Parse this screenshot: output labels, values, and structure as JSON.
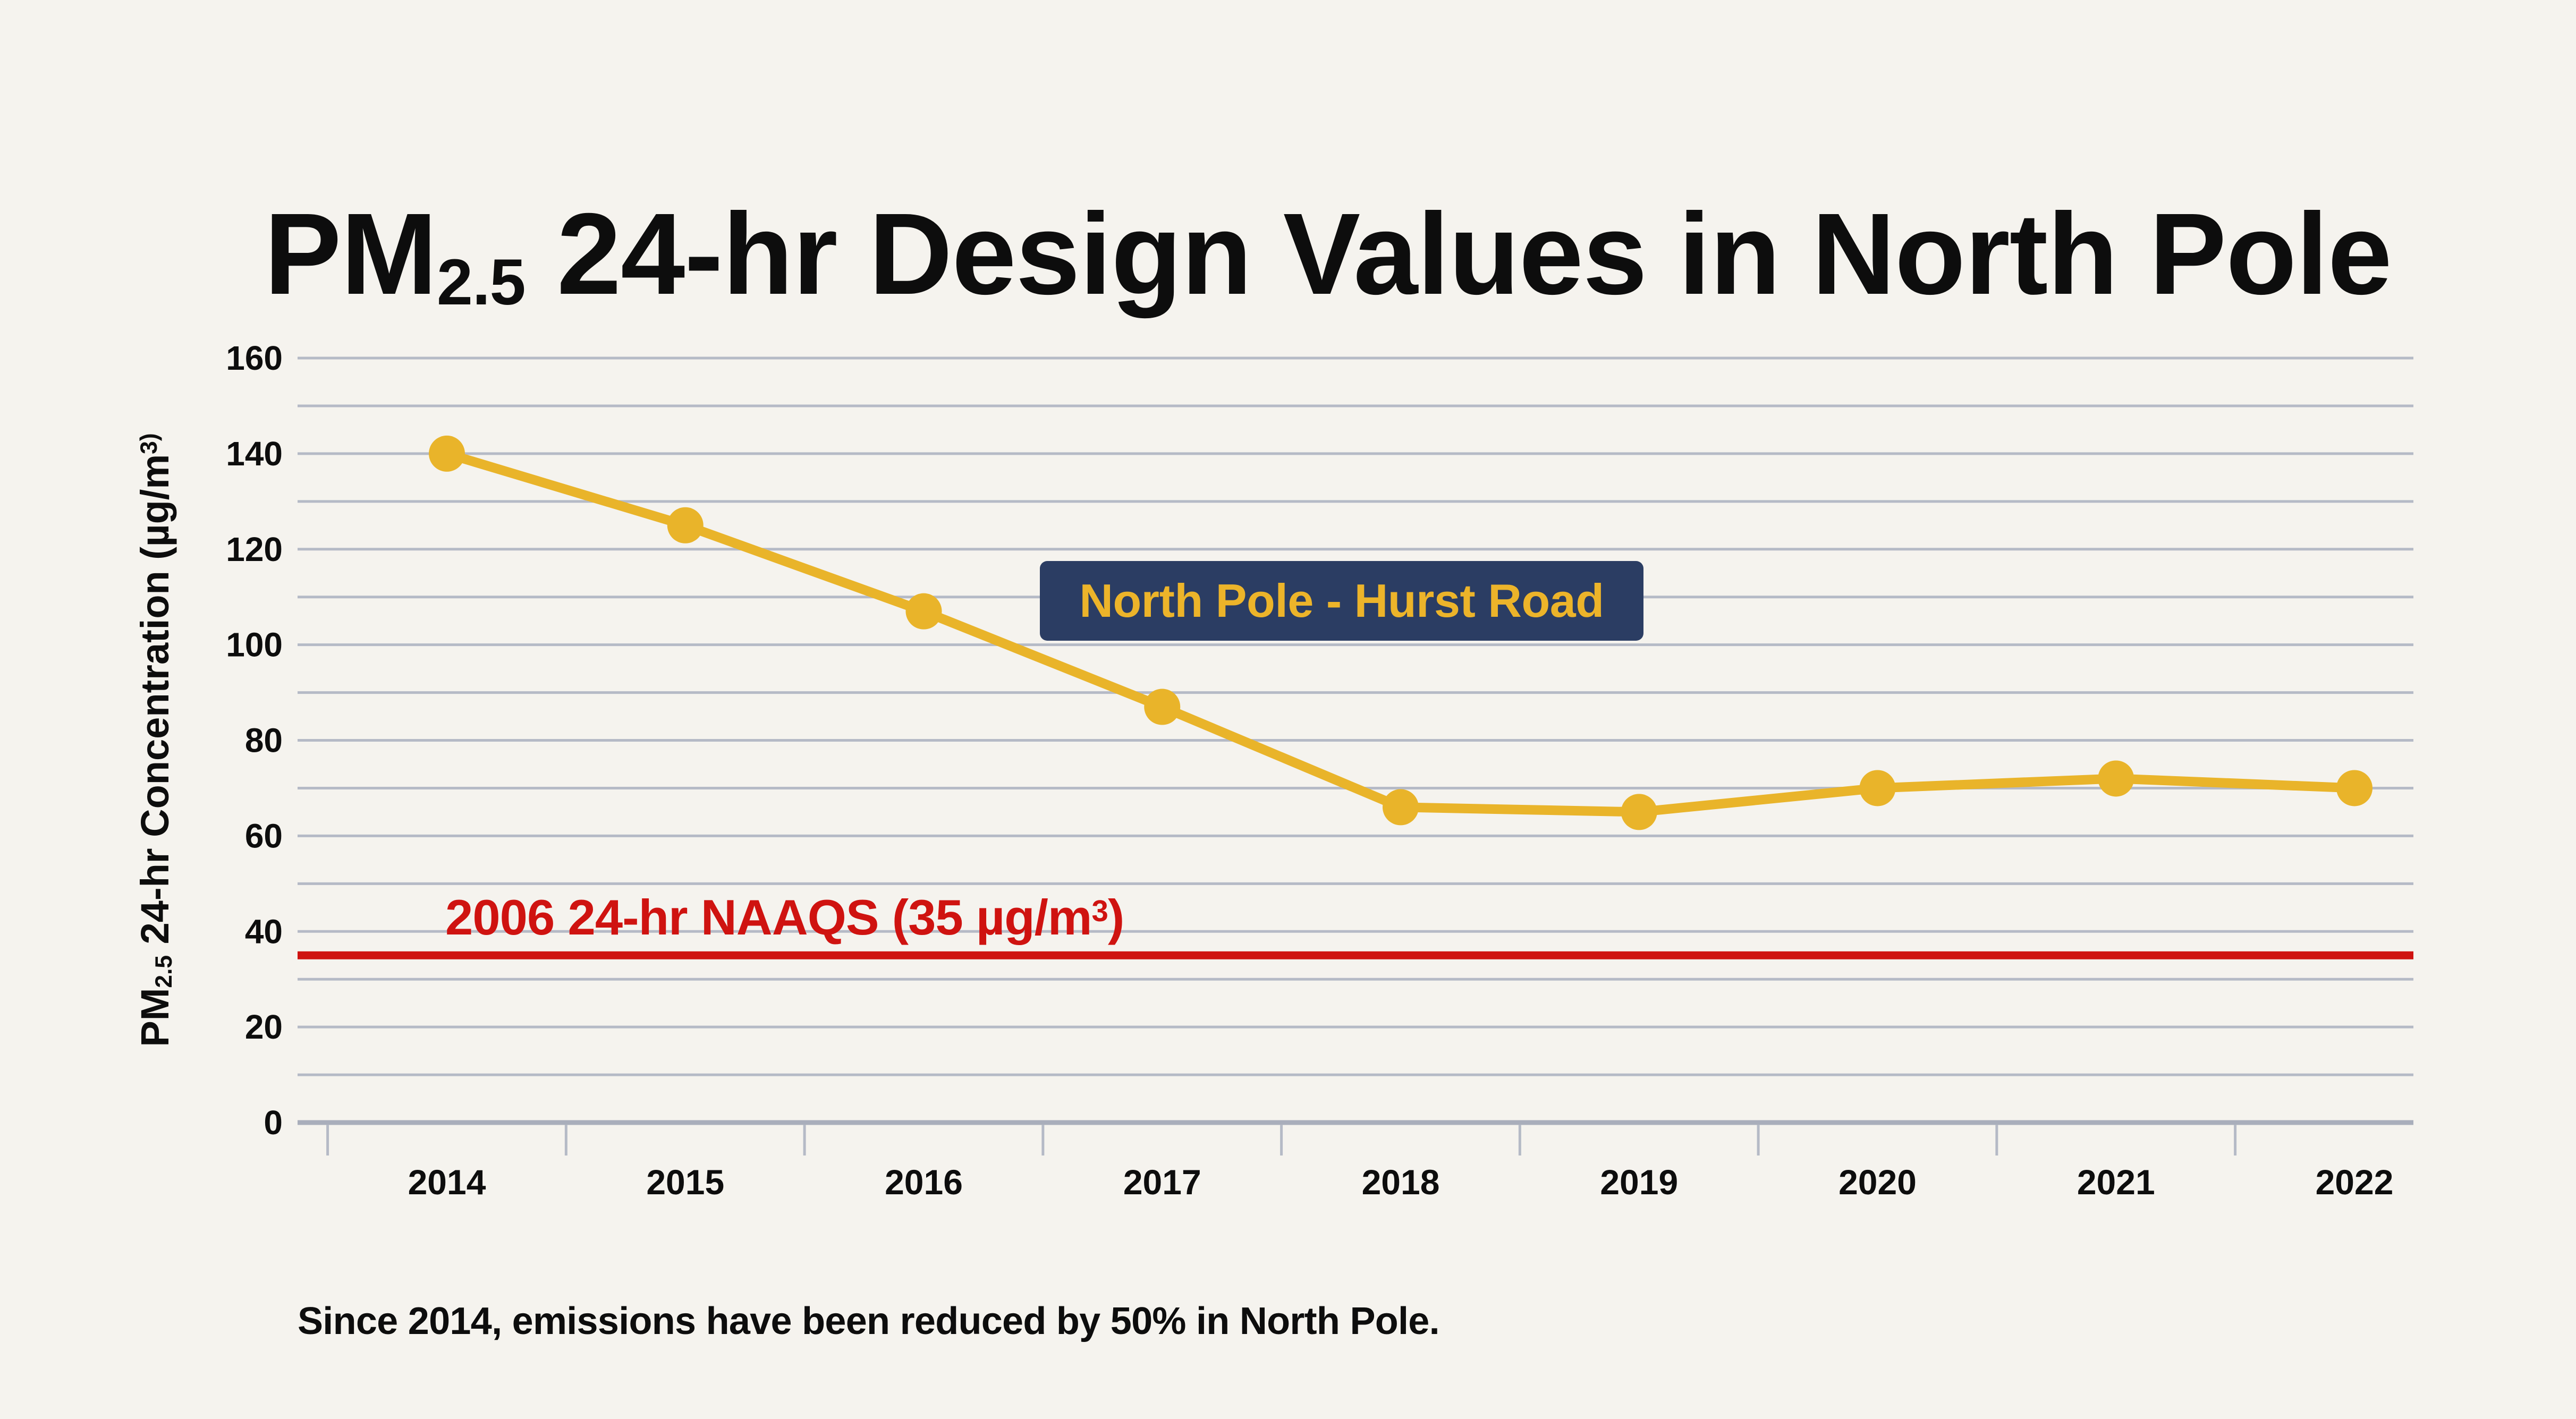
{
  "title": {
    "prefix": "PM",
    "subscript": "2.5",
    "rest": " 24-hr Design Values in North Pole"
  },
  "y_axis": {
    "label_prefix": "PM",
    "label_subscript": "2.5",
    "label_mid": " 24-hr Concentration (µg/m",
    "label_superscript": "3)"
  },
  "annotation_box": {
    "label": "North Pole - Hurst Road"
  },
  "naaqs": {
    "label_prefix": "2006 24-hr NAAQS (35 µg/m",
    "label_superscript": "3",
    "label_close": ")",
    "value": 35
  },
  "footer": {
    "text": "Since 2014, emissions have been reduced by 50% in North Pole."
  },
  "chart_data": {
    "type": "line",
    "title": "PM2.5 24-hr Design Values in North Pole",
    "categories": [
      "2014",
      "2015",
      "2016",
      "2017",
      "2018",
      "2019",
      "2020",
      "2021",
      "2022"
    ],
    "series": [
      {
        "name": "North Pole - Hurst Road",
        "values": [
          140,
          125,
          107,
          87,
          66,
          65,
          70,
          72,
          70
        ]
      }
    ],
    "reference_line": {
      "label": "2006 24-hr NAAQS (35 µg/m³)",
      "value": 35
    },
    "xlabel": "",
    "ylabel": "PM2.5 24-hr Concentration (µg/m³)",
    "ylim": [
      0,
      160
    ],
    "ytick_step": 20,
    "gridline_step": 10,
    "grid": true,
    "legend_position": "none",
    "colors": {
      "background": "#f5f3ee",
      "grid": "#b5bac6",
      "axis": "#a9aebb",
      "series": "#e9b42a",
      "reference": "#cf1310",
      "text": "#0d0d0d",
      "annotation_bg": "#2b3d63",
      "annotation_text": "#ecb42a"
    }
  }
}
